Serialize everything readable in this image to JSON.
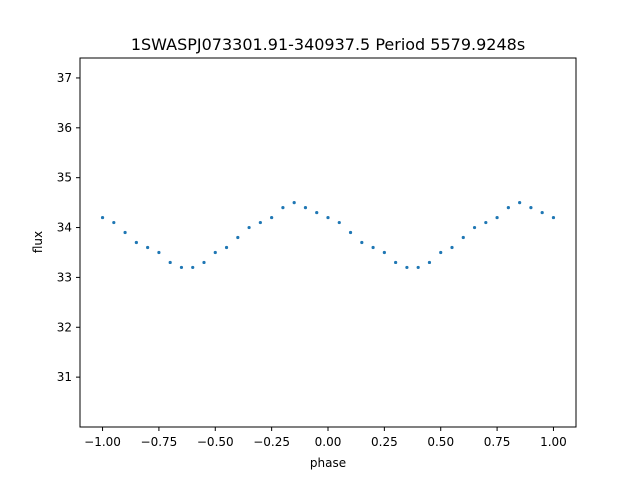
{
  "chart_data": {
    "type": "scatter",
    "title": "1SWASPJ073301.91-340937.5 Period 5579.9248s",
    "xlabel": "phase",
    "ylabel": "flux",
    "xlim": [
      -1.1,
      1.1
    ],
    "ylim": [
      30.0,
      37.4
    ],
    "xticks": [
      -1.0,
      -0.75,
      -0.5,
      -0.25,
      0.0,
      0.25,
      0.5,
      0.75,
      1.0
    ],
    "xtick_labels": [
      "−1.00",
      "−0.75",
      "−0.50",
      "−0.25",
      "0.00",
      "0.25",
      "0.50",
      "0.75",
      "1.00"
    ],
    "yticks": [
      31,
      32,
      33,
      34,
      35,
      36,
      37
    ],
    "ytick_labels": [
      "31",
      "32",
      "33",
      "34",
      "35",
      "36",
      "37"
    ],
    "grid": false,
    "marker_color": "#1f77b4",
    "series": [
      {
        "x": [
          -1.0,
          -0.95,
          -0.9,
          -0.85,
          -0.8,
          -0.75,
          -0.7,
          -0.65,
          -0.6,
          -0.55,
          -0.5,
          -0.45,
          -0.4,
          -0.35,
          -0.3,
          -0.25,
          -0.2,
          -0.15,
          -0.1,
          -0.05,
          0.0,
          0.05,
          0.1,
          0.15,
          0.2,
          0.25,
          0.3,
          0.35,
          0.4,
          0.45,
          0.5,
          0.55,
          0.6,
          0.65,
          0.7,
          0.75,
          0.8,
          0.85,
          0.9,
          0.95,
          1.0
        ],
        "y": [
          34.2,
          34.1,
          33.9,
          33.7,
          33.6,
          33.5,
          33.3,
          33.2,
          33.2,
          33.3,
          33.5,
          33.6,
          33.8,
          34.0,
          34.1,
          34.2,
          34.4,
          34.5,
          34.4,
          34.3,
          34.2,
          34.1,
          33.9,
          33.7,
          33.6,
          33.5,
          33.3,
          33.2,
          33.2,
          33.3,
          33.5,
          33.6,
          33.8,
          34.0,
          34.1,
          34.2,
          34.4,
          34.5,
          34.4,
          34.3,
          34.2
        ]
      }
    ]
  }
}
